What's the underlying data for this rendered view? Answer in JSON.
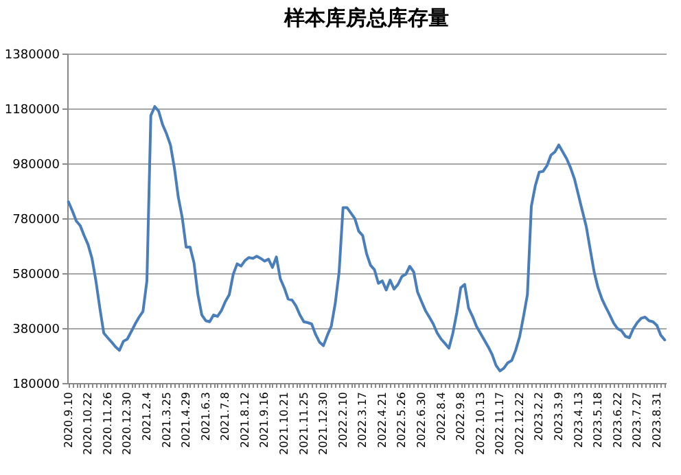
{
  "chart_data": {
    "type": "line",
    "title": "样本库房总库存量",
    "categories": [
      "2020.9.10",
      null,
      null,
      null,
      null,
      "2020.10.22",
      null,
      null,
      null,
      null,
      "2020.11.26",
      null,
      null,
      null,
      null,
      "2020.12.30",
      null,
      null,
      null,
      null,
      "2021.2.4",
      null,
      null,
      null,
      null,
      "2021.3.25",
      null,
      null,
      null,
      null,
      "2021.4.29",
      null,
      null,
      null,
      null,
      "2021.6.3",
      null,
      null,
      null,
      null,
      "2021.7.8",
      null,
      null,
      null,
      null,
      "2021.8.12",
      null,
      null,
      null,
      null,
      "2021.9.16",
      null,
      null,
      null,
      null,
      "2021.10.21",
      null,
      null,
      null,
      null,
      "2021.11.25",
      null,
      null,
      null,
      null,
      "2021.12.30",
      null,
      null,
      null,
      null,
      "2022.2.10",
      null,
      null,
      null,
      null,
      "2022.3.17",
      null,
      null,
      null,
      null,
      "2022.4.21",
      null,
      null,
      null,
      null,
      "2022.5.26",
      null,
      null,
      null,
      null,
      "2022.6.30",
      null,
      null,
      null,
      null,
      "2022.8.4",
      null,
      null,
      null,
      null,
      "2022.9.8",
      null,
      null,
      null,
      null,
      "2022.10.13",
      null,
      null,
      null,
      null,
      "2022.11.17",
      null,
      null,
      null,
      null,
      "2022.12.22",
      null,
      null,
      null,
      null,
      "2023.2.2",
      null,
      null,
      null,
      null,
      "2023.3.9",
      null,
      null,
      null,
      null,
      "2023.4.13",
      null,
      null,
      null,
      null,
      "2023.5.18",
      null,
      null,
      null,
      null,
      "2023.6.22",
      null,
      null,
      null,
      null,
      "2023.7.27",
      null,
      null,
      null,
      null,
      "2023.8.31",
      null,
      null
    ],
    "series": [
      {
        "color": "#4a7ebb",
        "values": [
          840000,
          807000,
          770000,
          753000,
          717000,
          684000,
          634000,
          552000,
          453000,
          362000,
          345000,
          329000,
          312000,
          299000,
          332000,
          340000,
          367000,
          395000,
          420000,
          441000,
          552000,
          1154000,
          1187000,
          1170000,
          1121000,
          1088000,
          1047000,
          964000,
          857000,
          783000,
          675000,
          675000,
          618000,
          502000,
          428000,
          407000,
          403000,
          428000,
          423000,
          444000,
          477000,
          502000,
          576000,
          614000,
          606000,
          626000,
          637000,
          634000,
          642000,
          634000,
          624000,
          631000,
          601000,
          639000,
          560000,
          527000,
          486000,
          482000,
          461000,
          428000,
          403000,
          400000,
          395000,
          357000,
          329000,
          316000,
          354000,
          387000,
          469000,
          585000,
          819000,
          819000,
          799000,
          779000,
          733000,
          717000,
          651000,
          609000,
          593000,
          543000,
          552000,
          519000,
          555000,
          522000,
          539000,
          568000,
          576000,
          605000,
          585000,
          511000,
          477000,
          444000,
          420000,
          395000,
          362000,
          340000,
          324000,
          307000,
          362000,
          436000,
          527000,
          539000,
          453000,
          423000,
          387000,
          362000,
          337000,
          312000,
          284000,
          244000,
          224000,
          234000,
          254000,
          262000,
          299000,
          348000,
          422000,
          502000,
          824000,
          898000,
          948000,
          951000,
          972000,
          1010000,
          1022000,
          1047000,
          1022000,
          997000,
          964000,
          923000,
          865000,
          807000,
          750000,
          667000,
          585000,
          527000,
          486000,
          456000,
          428000,
          398000,
          378000,
          370000,
          350000,
          345000,
          378000,
          400000,
          416000,
          420000,
          407000,
          403000,
          390000,
          354000,
          337000
        ]
      }
    ],
    "ylim": [
      180000,
      1380000
    ],
    "yticks": [
      180000,
      380000,
      580000,
      780000,
      980000,
      1180000,
      1380000
    ],
    "grid": "y"
  }
}
